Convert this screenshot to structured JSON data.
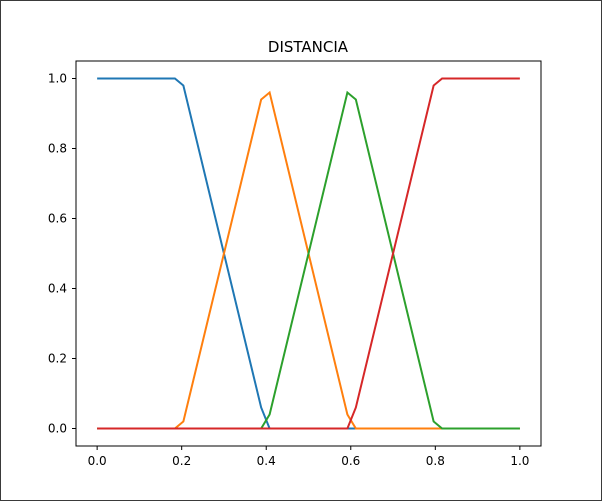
{
  "chart_data": {
    "type": "line",
    "title": "DISTANCIA",
    "xlabel": "",
    "ylabel": "",
    "xlim": [
      -0.05,
      1.05
    ],
    "ylim": [
      -0.05,
      1.05
    ],
    "xticks": [
      0.0,
      0.2,
      0.4,
      0.6,
      0.8,
      1.0
    ],
    "xtick_labels": [
      "0.0",
      "0.2",
      "0.4",
      "0.6",
      "0.8",
      "1.0"
    ],
    "yticks": [
      0.0,
      0.2,
      0.4,
      0.6,
      0.8,
      1.0
    ],
    "ytick_labels": [
      "0.0",
      "0.2",
      "0.4",
      "0.6",
      "0.8",
      "1.0"
    ],
    "grid": false,
    "legend": "none",
    "series": [
      {
        "color": "#1f77b4",
        "x": [
          0.0,
          0.184,
          0.204,
          0.388,
          0.408,
          1.0
        ],
        "y": [
          1.0,
          1.0,
          0.98,
          0.06,
          0.0,
          0.0
        ]
      },
      {
        "color": "#ff7f0e",
        "x": [
          0.0,
          0.184,
          0.204,
          0.388,
          0.408,
          0.592,
          0.612,
          1.0
        ],
        "y": [
          0.0,
          0.0,
          0.02,
          0.94,
          0.96,
          0.04,
          0.0,
          0.0
        ]
      },
      {
        "color": "#2ca02c",
        "x": [
          0.0,
          0.388,
          0.408,
          0.592,
          0.612,
          0.796,
          0.816,
          1.0
        ],
        "y": [
          0.0,
          0.0,
          0.04,
          0.96,
          0.94,
          0.02,
          0.0,
          0.0
        ]
      },
      {
        "color": "#d62728",
        "x": [
          0.0,
          0.592,
          0.612,
          0.796,
          0.816,
          1.0
        ],
        "y": [
          0.0,
          0.0,
          0.06,
          0.98,
          1.0,
          1.0
        ]
      }
    ]
  }
}
